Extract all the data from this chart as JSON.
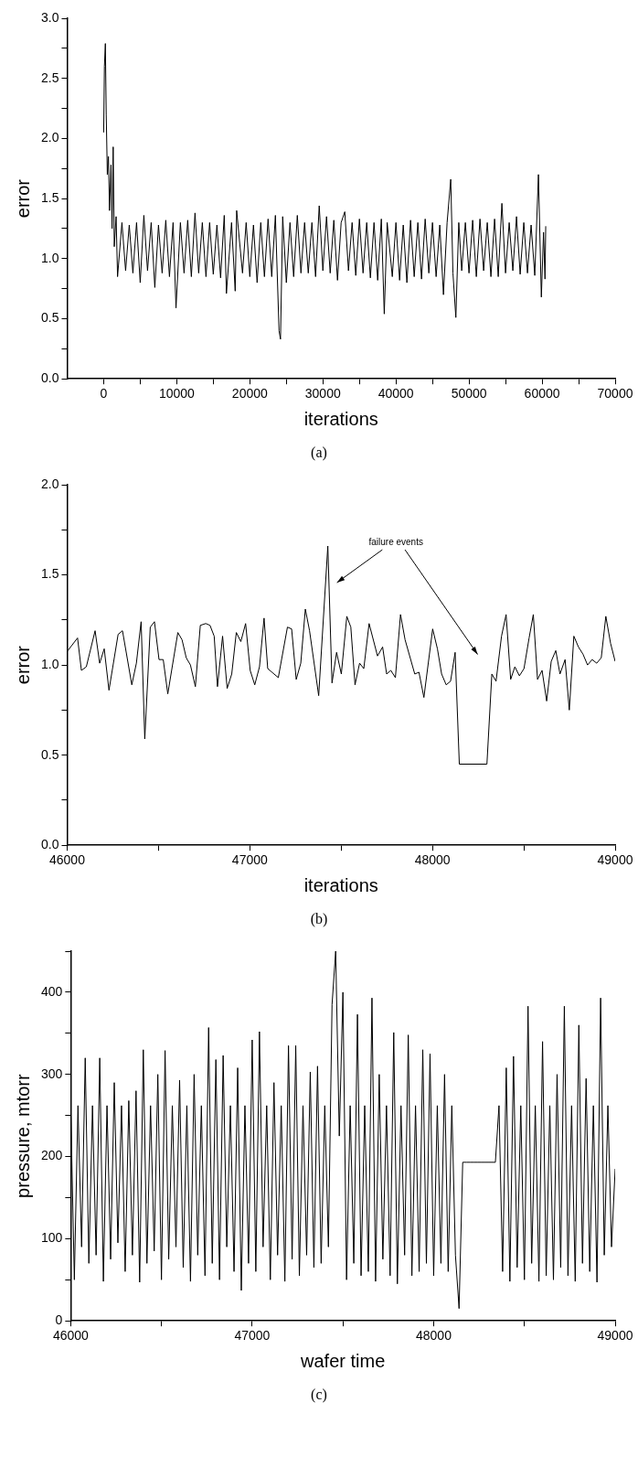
{
  "chart_data": [
    {
      "type": "line",
      "xlabel": "iterations",
      "ylabel": "error",
      "marker": "none",
      "line_style": "solid",
      "legend": false,
      "xlim": [
        -5000,
        70000
      ],
      "xticks": [
        0,
        {
          "value": 5000,
          "label": null
        },
        10000,
        {
          "value": 15000,
          "label": null
        },
        20000,
        {
          "value": 25000,
          "label": null
        },
        30000,
        {
          "value": 35000,
          "label": null
        },
        40000,
        {
          "value": 45000,
          "label": null
        },
        50000,
        {
          "value": 55000,
          "label": null
        },
        60000,
        {
          "value": 65000,
          "label": null
        },
        70000
      ],
      "ylim": [
        0,
        3
      ],
      "yticks": [
        "0.0",
        {
          "value": 0.25,
          "label": null
        },
        {
          "value": 0.5,
          "label": "0.5"
        },
        {
          "value": 0.75,
          "label": null
        },
        {
          "value": 1,
          "label": "1.0"
        },
        {
          "value": 1.25,
          "label": null
        },
        {
          "value": 1.5,
          "label": "1.5"
        },
        {
          "value": 1.75,
          "label": null
        },
        {
          "value": 2,
          "label": "2.0"
        },
        {
          "value": 2.25,
          "label": null
        },
        {
          "value": 2.5,
          "label": "2.5"
        },
        {
          "value": 2.75,
          "label": null
        },
        {
          "value": 3,
          "label": "3.0"
        }
      ],
      "annotations": [
        "(a)"
      ],
      "series": [
        {
          "color": "#000000",
          "x": [
            0,
            100,
            230,
            350,
            500,
            650,
            800,
            1000,
            1150,
            1300,
            1450,
            1700,
            1900,
            2500,
            3000,
            3500,
            4000,
            4500,
            5000,
            5500,
            6000,
            6500,
            7000,
            7500,
            8000,
            8500,
            9000,
            9500,
            9900,
            10500,
            11000,
            11500,
            12000,
            12500,
            13000,
            13500,
            14000,
            14500,
            15000,
            15500,
            16000,
            16500,
            16800,
            17500,
            18000,
            18200,
            19000,
            19500,
            20000,
            20500,
            21000,
            21500,
            22000,
            22500,
            23000,
            23500,
            24000,
            24200,
            24500,
            25000,
            25500,
            26000,
            26500,
            27000,
            27500,
            28000,
            28500,
            29000,
            29500,
            30000,
            30500,
            31000,
            31500,
            32000,
            32500,
            33000,
            33500,
            34000,
            34500,
            35000,
            35500,
            36000,
            36500,
            37000,
            37500,
            38000,
            38400,
            38800,
            39500,
            40000,
            40500,
            41000,
            41500,
            42000,
            42500,
            43000,
            43500,
            44000,
            44500,
            45000,
            45500,
            46000,
            46500,
            47000,
            47500,
            47800,
            48200,
            48600,
            49000,
            49500,
            50000,
            50500,
            51000,
            51500,
            52000,
            52500,
            53000,
            53500,
            54000,
            54500,
            55000,
            55500,
            56000,
            56500,
            57000,
            57500,
            58000,
            58500,
            59000,
            59500,
            59900,
            60200,
            60400,
            60500
          ],
          "values": [
            2.05,
            2.6,
            2.79,
            2.2,
            1.7,
            1.85,
            1.4,
            1.78,
            1.25,
            1.93,
            1.1,
            1.35,
            0.85,
            1.3,
            0.9,
            1.28,
            0.88,
            1.3,
            0.8,
            1.36,
            0.9,
            1.3,
            0.76,
            1.28,
            0.88,
            1.32,
            0.85,
            1.3,
            0.59,
            1.3,
            0.88,
            1.32,
            0.85,
            1.38,
            0.88,
            1.3,
            0.85,
            1.3,
            0.87,
            1.28,
            0.84,
            1.36,
            0.71,
            1.3,
            0.73,
            1.4,
            0.88,
            1.3,
            0.85,
            1.28,
            0.8,
            1.3,
            0.85,
            1.33,
            0.85,
            1.36,
            0.4,
            0.33,
            1.35,
            0.8,
            1.3,
            0.85,
            1.36,
            0.88,
            1.3,
            0.88,
            1.3,
            0.85,
            1.44,
            0.9,
            1.35,
            0.88,
            1.32,
            0.82,
            1.3,
            1.39,
            0.9,
            1.3,
            0.86,
            1.33,
            0.88,
            1.3,
            0.84,
            1.3,
            0.82,
            1.33,
            0.54,
            1.3,
            0.85,
            1.3,
            0.82,
            1.28,
            0.8,
            1.32,
            0.85,
            1.3,
            0.83,
            1.33,
            0.88,
            1.3,
            0.85,
            1.28,
            0.7,
            1.3,
            1.66,
            0.88,
            0.51,
            1.3,
            0.9,
            1.3,
            0.88,
            1.32,
            0.85,
            1.33,
            0.9,
            1.3,
            0.85,
            1.33,
            0.85,
            1.46,
            0.88,
            1.3,
            0.9,
            1.35,
            0.87,
            1.3,
            0.88,
            1.28,
            0.86,
            1.7,
            0.68,
            1.22,
            0.83,
            1.27
          ]
        }
      ]
    },
    {
      "type": "line",
      "xlabel": "iterations",
      "ylabel": "error",
      "marker": "none",
      "line_style": "solid",
      "legend": false,
      "xlim": [
        46000,
        49000
      ],
      "xticks": [
        46000,
        {
          "value": 46500,
          "label": null
        },
        47000,
        {
          "value": 47500,
          "label": null
        },
        48000,
        {
          "value": 48500,
          "label": null
        },
        49000
      ],
      "ylim": [
        0,
        2
      ],
      "yticks": [
        {
          "value": 0,
          "label": "0.0"
        },
        {
          "value": 0.25,
          "label": null
        },
        {
          "value": 0.5,
          "label": "0.5"
        },
        {
          "value": 0.75,
          "label": null
        },
        {
          "value": 1,
          "label": "1.0"
        },
        {
          "value": 1.25,
          "label": null
        },
        {
          "value": 1.5,
          "label": "1.5"
        },
        {
          "value": 1.75,
          "label": null
        },
        {
          "value": 2,
          "label": "2.0"
        }
      ],
      "annotations": [
        "failure events",
        "(b)"
      ],
      "series": [
        {
          "color": "#000000",
          "x": [
            46000,
            46057,
            46078,
            46105,
            46153,
            46178,
            46203,
            46229,
            46279,
            46303,
            46354,
            46379,
            46405,
            46425,
            46455,
            46478,
            46503,
            46526,
            46551,
            46606,
            46629,
            46652,
            46675,
            46702,
            46729,
            46759,
            46782,
            46805,
            46823,
            46851,
            46876,
            46901,
            46926,
            46951,
            46977,
            47002,
            47027,
            47053,
            47078,
            47098,
            47156,
            47206,
            47229,
            47254,
            47279,
            47304,
            47327,
            47377,
            47427,
            47450,
            47475,
            47501,
            47531,
            47553,
            47576,
            47601,
            47624,
            47653,
            47699,
            47727,
            47749,
            47772,
            47797,
            47825,
            47850,
            47903,
            47926,
            47953,
            48001,
            48027,
            48050,
            48075,
            48099,
            48124,
            48147,
            48298,
            48325,
            48348,
            48378,
            48403,
            48428,
            48451,
            48476,
            48501,
            48529,
            48552,
            48575,
            48600,
            48625,
            48650,
            48675,
            48698,
            48726,
            48749,
            48774,
            48799,
            48824,
            48849,
            48874,
            48899,
            48924,
            48949,
            48975,
            49000
          ],
          "values": [
            1.075,
            1.15,
            0.97,
            0.99,
            1.19,
            1.01,
            1.09,
            0.86,
            1.17,
            1.19,
            0.89,
            1.01,
            1.24,
            0.59,
            1.21,
            1.24,
            1.03,
            1.03,
            0.84,
            1.18,
            1.14,
            1.04,
            1.0,
            0.88,
            1.22,
            1.23,
            1.22,
            1.16,
            0.88,
            1.16,
            0.87,
            0.95,
            1.18,
            1.13,
            1.23,
            0.97,
            0.89,
            0.99,
            1.26,
            0.98,
            0.93,
            1.21,
            1.2,
            0.92,
            1.01,
            1.31,
            1.19,
            0.83,
            1.66,
            0.9,
            1.07,
            0.95,
            1.27,
            1.21,
            0.89,
            1.01,
            0.98,
            1.23,
            1.05,
            1.1,
            0.95,
            0.97,
            0.93,
            1.28,
            1.14,
            0.95,
            0.96,
            0.82,
            1.2,
            1.09,
            0.95,
            0.89,
            0.91,
            1.07,
            0.45,
            0.45,
            0.95,
            0.91,
            1.16,
            1.28,
            0.92,
            0.99,
            0.94,
            0.98,
            1.15,
            1.28,
            0.92,
            0.97,
            0.8,
            1.02,
            1.08,
            0.95,
            1.03,
            0.75,
            1.16,
            1.1,
            1.06,
            1.0,
            1.03,
            1.01,
            1.04,
            1.27,
            1.12,
            1.02
          ]
        }
      ]
    },
    {
      "type": "line",
      "xlabel": "wafer time",
      "ylabel": "pressure, mtorr",
      "marker": "none",
      "line_style": "solid",
      "legend": false,
      "xlim": [
        46000,
        49000
      ],
      "xticks": [
        46000,
        {
          "value": 46500,
          "label": null
        },
        47000,
        {
          "value": 47500,
          "label": null
        },
        48000,
        {
          "value": 48500,
          "label": null
        },
        49000
      ],
      "ylim": [
        0,
        450
      ],
      "yticks": [
        0,
        {
          "value": 50,
          "label": null
        },
        100,
        {
          "value": 150,
          "label": null
        },
        200,
        {
          "value": 250,
          "label": null
        },
        300,
        {
          "value": 350,
          "label": null
        },
        400,
        {
          "value": 450,
          "label": null
        }
      ],
      "annotations": [
        "(c)"
      ],
      "series": [
        {
          "color": "#000000",
          "x": [
            46000,
            46020,
            46040,
            46060,
            46080,
            46100,
            46120,
            46140,
            46160,
            46180,
            46200,
            46220,
            46240,
            46260,
            46280,
            46300,
            46320,
            46340,
            46360,
            46380,
            46400,
            46420,
            46440,
            46460,
            46480,
            46500,
            46520,
            46540,
            46560,
            46580,
            46600,
            46620,
            46640,
            46660,
            46680,
            46700,
            46720,
            46740,
            46760,
            46780,
            46800,
            46820,
            46840,
            46860,
            46880,
            46900,
            46920,
            46940,
            46960,
            46980,
            47000,
            47020,
            47040,
            47060,
            47080,
            47100,
            47120,
            47140,
            47160,
            47180,
            47200,
            47220,
            47240,
            47260,
            47280,
            47300,
            47320,
            47340,
            47360,
            47380,
            47400,
            47420,
            47440,
            47460,
            47480,
            47500,
            47520,
            47540,
            47560,
            47580,
            47600,
            47620,
            47640,
            47660,
            47680,
            47700,
            47720,
            47740,
            47760,
            47780,
            47800,
            47820,
            47840,
            47860,
            47880,
            47900,
            47920,
            47940,
            47960,
            47980,
            48000,
            48020,
            48040,
            48060,
            48080,
            48100,
            48120,
            48140,
            48160,
            48180,
            48200,
            48220,
            48240,
            48260,
            48280,
            48300,
            48320,
            48340,
            48360,
            48380,
            48400,
            48420,
            48440,
            48460,
            48480,
            48500,
            48520,
            48540,
            48560,
            48580,
            48600,
            48620,
            48640,
            48660,
            48680,
            48700,
            48720,
            48740,
            48760,
            48780,
            48800,
            48820,
            48840,
            48860,
            48880,
            48900,
            48920,
            48940,
            48960,
            48980,
            49000
          ],
          "values": [
            262,
            50,
            262,
            90,
            320,
            70,
            262,
            80,
            320,
            48,
            262,
            75,
            290,
            95,
            262,
            60,
            268,
            80,
            280,
            47,
            330,
            70,
            262,
            85,
            300,
            50,
            329,
            75,
            262,
            90,
            293,
            65,
            262,
            48,
            300,
            80,
            262,
            55,
            357,
            70,
            318,
            50,
            323,
            90,
            262,
            60,
            308,
            37,
            262,
            70,
            342,
            60,
            352,
            90,
            262,
            50,
            290,
            80,
            262,
            48,
            335,
            75,
            335,
            55,
            262,
            80,
            303,
            65,
            310,
            70,
            262,
            90,
            385,
            450,
            225,
            400,
            50,
            262,
            70,
            373,
            55,
            262,
            60,
            393,
            48,
            300,
            75,
            262,
            55,
            351,
            45,
            262,
            80,
            348,
            55,
            262,
            60,
            330,
            70,
            325,
            55,
            262,
            70,
            300,
            60,
            262,
            80,
            15,
            193,
            193,
            193,
            193,
            193,
            193,
            193,
            193,
            193,
            193,
            262,
            60,
            308,
            48,
            322,
            65,
            262,
            50,
            383,
            70,
            262,
            48,
            340,
            55,
            262,
            50,
            300,
            65,
            383,
            55,
            262,
            48,
            360,
            70,
            295,
            60,
            262,
            47,
            393,
            80,
            262,
            90,
            185
          ]
        }
      ]
    }
  ]
}
